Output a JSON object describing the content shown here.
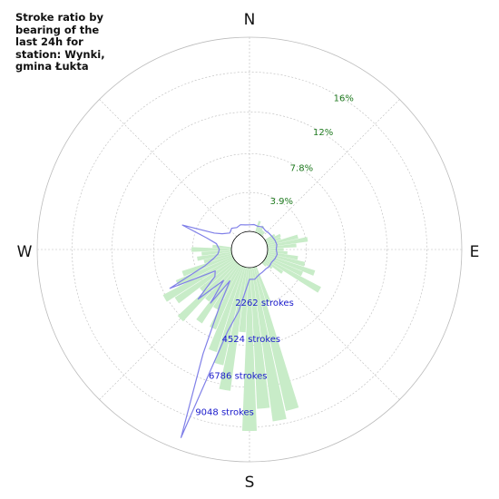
{
  "title": "Stroke ratio by bearing of the last 24h for station: Wynki, gmina Łukta",
  "colors": {
    "ratio_bars": "#c8ecc8",
    "stroke_line": "#8080e8",
    "grid": "#bbbbbb",
    "ratio_label": "#1f7a1f",
    "count_label": "#1a1acc"
  },
  "chart_data": {
    "type": "polar-bar",
    "title": "Stroke ratio by bearing of the last 24h for station: Wynki, gmina Łukta",
    "directions": {
      "n": "N",
      "e": "E",
      "s": "S",
      "w": "W"
    },
    "ratio_ticks": [
      {
        "value": 3.9,
        "label": "3.9%"
      },
      {
        "value": 7.8,
        "label": "7.8%"
      },
      {
        "value": 12,
        "label": "12%"
      },
      {
        "value": 16,
        "label": "16%"
      }
    ],
    "count_ticks": [
      {
        "value": 2262,
        "label": "2262 strokes"
      },
      {
        "value": 4524,
        "label": "4524 strokes"
      },
      {
        "value": 6786,
        "label": "6786 strokes"
      },
      {
        "value": 9048,
        "label": "9048 strokes"
      }
    ],
    "ratio_max": 19.5,
    "count_max": 11310,
    "bin_width_deg": 5,
    "ratio_series": {
      "name": "ratio",
      "bearings": [
        20,
        25,
        30,
        35,
        40,
        60,
        65,
        70,
        75,
        80,
        85,
        90,
        95,
        100,
        105,
        110,
        115,
        120,
        125,
        130,
        135,
        160,
        165,
        170,
        175,
        180,
        185,
        190,
        195,
        200,
        205,
        210,
        215,
        220,
        225,
        230,
        235,
        240,
        245,
        250,
        255,
        260,
        265,
        270,
        275
      ],
      "values": [
        1.2,
        0.6,
        0.9,
        0.5,
        0.5,
        1.1,
        1.6,
        1.5,
        3.2,
        4.1,
        2.9,
        1.6,
        2.0,
        3.1,
        3.9,
        5.1,
        4.0,
        6.3,
        2.2,
        1.1,
        0.5,
        3.8,
        14.8,
        15.6,
        14.2,
        16.4,
        6.5,
        12.5,
        10.1,
        9.0,
        6.9,
        5.0,
        7.0,
        4.8,
        8.0,
        4.5,
        7.1,
        8.0,
        6.2,
        5.3,
        2.9,
        3.5,
        3.0,
        4.0,
        1.9
      ]
    },
    "stroke_series": {
      "name": "strokes",
      "points": [
        [
          0,
          380
        ],
        [
          10,
          420
        ],
        [
          20,
          380
        ],
        [
          30,
          460
        ],
        [
          40,
          380
        ],
        [
          50,
          420
        ],
        [
          60,
          460
        ],
        [
          70,
          520
        ],
        [
          80,
          560
        ],
        [
          90,
          500
        ],
        [
          100,
          580
        ],
        [
          110,
          520
        ],
        [
          120,
          430
        ],
        [
          130,
          460
        ],
        [
          140,
          420
        ],
        [
          150,
          460
        ],
        [
          160,
          520
        ],
        [
          170,
          700
        ],
        [
          180,
          680
        ],
        [
          190,
          2600
        ],
        [
          195,
          3900
        ],
        [
          200,
          10600
        ],
        [
          204,
          5600
        ],
        [
          208,
          2600
        ],
        [
          212,
          1100
        ],
        [
          216,
          2800
        ],
        [
          220,
          1300
        ],
        [
          226,
          3100
        ],
        [
          232,
          1500
        ],
        [
          238,
          1300
        ],
        [
          244,
          4100
        ],
        [
          250,
          1700
        ],
        [
          256,
          1100
        ],
        [
          262,
          800
        ],
        [
          270,
          700
        ],
        [
          280,
          900
        ],
        [
          285,
          1500
        ],
        [
          290,
          3100
        ],
        [
          295,
          1200
        ],
        [
          300,
          780
        ],
        [
          310,
          440
        ],
        [
          320,
          560
        ],
        [
          330,
          420
        ],
        [
          340,
          480
        ],
        [
          350,
          400
        ],
        [
          360,
          380
        ]
      ]
    }
  }
}
